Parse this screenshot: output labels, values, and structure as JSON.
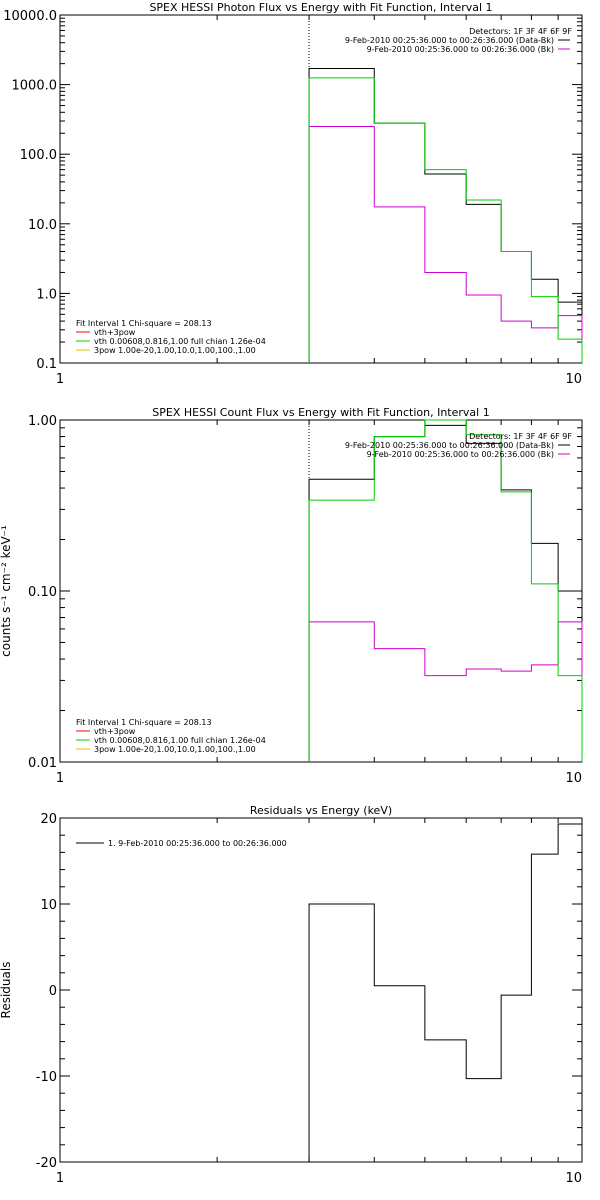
{
  "colors": {
    "black": "#000000",
    "magenta": "#d000d0",
    "green": "#00d000",
    "red": "#ff0000",
    "yellow": "#e0c000"
  },
  "chart_data": [
    {
      "type": "line",
      "title": "SPEX HESSI Photon Flux vs Energy with Fit Function, Interval 1",
      "xlabel": "",
      "ylabel": "",
      "xscale": "log",
      "yscale": "log",
      "xlim": [
        1,
        10
      ],
      "ylim": [
        0.1,
        10000
      ],
      "xticks": [
        1,
        10
      ],
      "xtick_labels": [
        "1",
        "10"
      ],
      "yticks": [
        0.1,
        1,
        10,
        100,
        1000,
        10000
      ],
      "ytick_labels": [
        "0.1",
        "1.0",
        "10.0",
        "100.0",
        "1000.0",
        "10000.0"
      ],
      "vertical_marker": 3,
      "top_legend": [
        {
          "label": "Detectors: 1F 3F 4F 6F 9F",
          "color": "black",
          "sample": false
        },
        {
          "label": "9-Feb-2010 00:25:36.000 to 00:26:36.000 (Data-Bk)",
          "color": "black",
          "sample": true
        },
        {
          "label": "9-Feb-2010 00:25:36.000 to 00:26:36.000 (Bk)",
          "color": "magenta",
          "sample": true
        }
      ],
      "bottom_legend": [
        {
          "label": "Fit Interval 1   Chi-square = 208.13",
          "color": "black",
          "sample": false
        },
        {
          "label": "vth+3pow",
          "color": "red",
          "sample": true
        },
        {
          "label": "vth 0.00608,0.816,1.00  full chian 1.26e-04",
          "color": "green",
          "sample": true
        },
        {
          "label": "3pow 1.00e-20,1.00,10.0,1.00,100.,1.00",
          "color": "yellow",
          "sample": true
        }
      ],
      "series": [
        {
          "name": "9-Feb-2010 00:25:36.000 to 00:26:36.000 (Data-Bk)",
          "color": "black",
          "bins": [
            {
              "x0": 3,
              "x1": 4,
              "y": 1700
            },
            {
              "x0": 4,
              "x1": 5,
              "y": 280
            },
            {
              "x0": 5,
              "x1": 6,
              "y": 52
            },
            {
              "x0": 6,
              "x1": 7,
              "y": 19
            },
            {
              "x0": 7,
              "x1": 8,
              "y": 4
            },
            {
              "x0": 8,
              "x1": 9,
              "y": 1.6
            },
            {
              "x0": 9,
              "x1": 10,
              "y": 0.75
            }
          ]
        },
        {
          "name": "9-Feb-2010 00:25:36.000 to 00:26:36.000 (Bk)",
          "color": "magenta",
          "bins": [
            {
              "x0": 3,
              "x1": 4,
              "y": 250
            },
            {
              "x0": 4,
              "x1": 5,
              "y": 17.5
            },
            {
              "x0": 5,
              "x1": 6,
              "y": 2
            },
            {
              "x0": 6,
              "x1": 7,
              "y": 0.95
            },
            {
              "x0": 7,
              "x1": 8,
              "y": 0.4
            },
            {
              "x0": 8,
              "x1": 9,
              "y": 0.32
            },
            {
              "x0": 9,
              "x1": 10,
              "y": 0.48
            }
          ]
        },
        {
          "name": "vth 0.00608,0.816,1.00  full chian 1.26e-04",
          "color": "green",
          "bins": [
            {
              "x0": 3,
              "x1": 4,
              "y": 1250
            },
            {
              "x0": 4,
              "x1": 5,
              "y": 280
            },
            {
              "x0": 5,
              "x1": 6,
              "y": 60
            },
            {
              "x0": 6,
              "x1": 7,
              "y": 22
            },
            {
              "x0": 7,
              "x1": 8,
              "y": 4
            },
            {
              "x0": 8,
              "x1": 9,
              "y": 0.9
            },
            {
              "x0": 9,
              "x1": 10,
              "y": 0.22
            }
          ]
        }
      ]
    },
    {
      "type": "line",
      "title": "SPEX HESSI Count Flux vs Energy with Fit Function, Interval 1",
      "xlabel": "",
      "ylabel": "counts s⁻¹ cm⁻² keV⁻¹",
      "xscale": "log",
      "yscale": "log",
      "xlim": [
        1,
        10
      ],
      "ylim": [
        0.01,
        1
      ],
      "xticks": [
        1,
        10
      ],
      "xtick_labels": [
        "1",
        "10"
      ],
      "yticks": [
        0.01,
        0.1,
        1
      ],
      "ytick_labels": [
        "0.01",
        "0.10",
        "1.00"
      ],
      "vertical_marker": 3,
      "top_legend": [
        {
          "label": "Detectors: 1F 3F 4F 6F 9F",
          "color": "black",
          "sample": false
        },
        {
          "label": "9-Feb-2010 00:25:36.000 to 00:26:36.000 (Data-Bk)",
          "color": "black",
          "sample": true
        },
        {
          "label": "9-Feb-2010 00:25:36.000 to 00:26:36.000 (Bk)",
          "color": "magenta",
          "sample": true
        }
      ],
      "bottom_legend": [
        {
          "label": "Fit Interval 1   Chi-square = 208.13",
          "color": "black",
          "sample": false
        },
        {
          "label": "vth+3pow",
          "color": "red",
          "sample": true
        },
        {
          "label": "vth 0.00608,0.816,1.00  full chian 1.26e-04",
          "color": "green",
          "sample": true
        },
        {
          "label": "3pow 1.00e-20,1.00,10.0,1.00,100.,1.00",
          "color": "yellow",
          "sample": true
        }
      ],
      "series": [
        {
          "name": "9-Feb-2010 00:25:36.000 to 00:26:36.000 (Data-Bk)",
          "color": "black",
          "bins": [
            {
              "x0": 3,
              "x1": 4,
              "y": 0.45
            },
            {
              "x0": 4,
              "x1": 5,
              "y": 0.8
            },
            {
              "x0": 5,
              "x1": 6,
              "y": 0.93
            },
            {
              "x0": 6,
              "x1": 7,
              "y": 0.73
            },
            {
              "x0": 7,
              "x1": 8,
              "y": 0.39
            },
            {
              "x0": 8,
              "x1": 9,
              "y": 0.19
            },
            {
              "x0": 9,
              "x1": 10,
              "y": 0.1
            }
          ]
        },
        {
          "name": "9-Feb-2010 00:25:36.000 to 00:26:36.000 (Bk)",
          "color": "magenta",
          "bins": [
            {
              "x0": 3,
              "x1": 4,
              "y": 0.066
            },
            {
              "x0": 4,
              "x1": 5,
              "y": 0.046
            },
            {
              "x0": 5,
              "x1": 6,
              "y": 0.032
            },
            {
              "x0": 6,
              "x1": 7,
              "y": 0.035
            },
            {
              "x0": 7,
              "x1": 8,
              "y": 0.034
            },
            {
              "x0": 8,
              "x1": 9,
              "y": 0.037
            },
            {
              "x0": 9,
              "x1": 10,
              "y": 0.066
            }
          ]
        },
        {
          "name": "vth 0.00608,0.816,1.00  full chian 1.26e-04",
          "color": "green",
          "bins": [
            {
              "x0": 3,
              "x1": 4,
              "y": 0.34
            },
            {
              "x0": 4,
              "x1": 5,
              "y": 0.8
            },
            {
              "x0": 5,
              "x1": 6,
              "y": 1.0
            },
            {
              "x0": 6,
              "x1": 7,
              "y": 0.82
            },
            {
              "x0": 7,
              "x1": 8,
              "y": 0.38
            },
            {
              "x0": 8,
              "x1": 9,
              "y": 0.11
            },
            {
              "x0": 9,
              "x1": 10,
              "y": 0.032
            }
          ]
        }
      ]
    },
    {
      "type": "line",
      "title": "Residuals vs Energy (keV)",
      "xlabel": "",
      "ylabel": "Residuals",
      "xscale": "log",
      "yscale": "linear",
      "xlim": [
        1,
        10
      ],
      "ylim": [
        -20,
        20
      ],
      "xticks": [
        1,
        10
      ],
      "xtick_labels": [
        "1",
        "10"
      ],
      "yticks": [
        -20,
        -10,
        0,
        10,
        20
      ],
      "ytick_labels": [
        "-20",
        "-10",
        "0",
        "10",
        "20"
      ],
      "vertical_marker": null,
      "top_legend": [
        {
          "label": "1.  9-Feb-2010 00:25:36.000 to 00:26:36.000",
          "color": "black",
          "sample": true
        }
      ],
      "bottom_legend": [],
      "series": [
        {
          "name": "1.  9-Feb-2010 00:25:36.000 to 00:26:36.000",
          "color": "black",
          "bins": [
            {
              "x0": 3,
              "x1": 4,
              "y": 10
            },
            {
              "x0": 4,
              "x1": 5,
              "y": 0.5
            },
            {
              "x0": 5,
              "x1": 6,
              "y": -5.8
            },
            {
              "x0": 6,
              "x1": 7,
              "y": -10.3
            },
            {
              "x0": 7,
              "x1": 8,
              "y": -0.6
            },
            {
              "x0": 8,
              "x1": 9,
              "y": 15.8
            },
            {
              "x0": 9,
              "x1": 10,
              "y": 19.3
            }
          ]
        }
      ]
    }
  ]
}
